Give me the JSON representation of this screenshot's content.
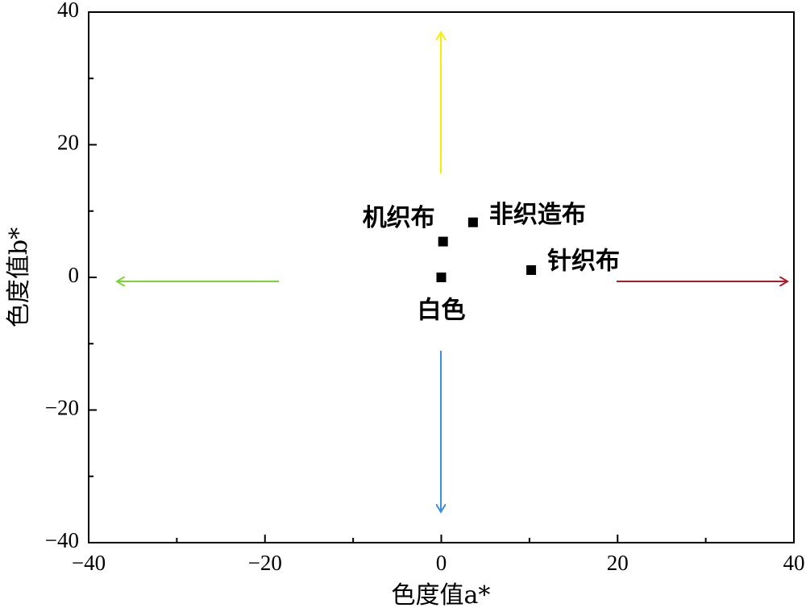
{
  "chart_data": {
    "type": "scatter",
    "x_label": "色度值a*",
    "y_label": "色度值b*",
    "x": [
      0,
      0.2,
      3.6,
      10.2
    ],
    "values": [
      0,
      5.4,
      8.3,
      1.1
    ],
    "point_labels": [
      "白色",
      "机织布",
      "非织造布",
      "针织布"
    ],
    "color": "#000000",
    "xlim": [
      -40,
      40
    ],
    "ylim": [
      -40,
      40
    ],
    "xticks": [
      {
        "value": -40,
        "label": "−40"
      },
      {
        "value": -20,
        "label": "−20"
      },
      0,
      20,
      40
    ],
    "yticks": [
      {
        "value": -40,
        "label": "−40"
      },
      {
        "value": -20,
        "label": "−20"
      },
      0,
      20,
      40
    ],
    "xminorticks": [
      -30,
      -10,
      10,
      30
    ],
    "yminorticks": [
      -30,
      -10,
      10,
      30
    ]
  }
}
